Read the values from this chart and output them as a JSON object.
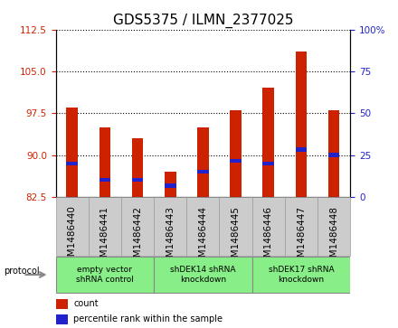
{
  "title": "GDS5375 / ILMN_2377025",
  "samples": [
    "GSM1486440",
    "GSM1486441",
    "GSM1486442",
    "GSM1486443",
    "GSM1486444",
    "GSM1486445",
    "GSM1486446",
    "GSM1486447",
    "GSM1486448"
  ],
  "red_values": [
    98.5,
    95.0,
    93.0,
    87.0,
    95.0,
    98.0,
    102.0,
    108.5,
    98.0
  ],
  "blue_values": [
    88.5,
    85.5,
    85.5,
    84.5,
    87.0,
    89.0,
    88.5,
    91.0,
    90.0
  ],
  "ymin": 82.5,
  "ymax": 112.5,
  "yticks": [
    82.5,
    90.0,
    97.5,
    105.0,
    112.5
  ],
  "y2ticks": [
    0,
    25,
    50,
    75,
    100
  ],
  "bar_width": 0.35,
  "bar_color": "#CC2200",
  "blue_color": "#2222CC",
  "protocol_groups": [
    {
      "label": "empty vector\nshRNA control",
      "start": 0,
      "end": 3,
      "color": "#88EE88"
    },
    {
      "label": "shDEK14 shRNA\nknockdown",
      "start": 3,
      "end": 6,
      "color": "#88EE88"
    },
    {
      "label": "shDEK17 shRNA\nknockdown",
      "start": 6,
      "end": 9,
      "color": "#88EE88"
    }
  ],
  "protocol_label": "protocol",
  "legend_count": "count",
  "legend_pct": "percentile rank within the sample",
  "title_fontsize": 11,
  "tick_fontsize": 7.5,
  "bg_color": "#CCCCCC",
  "plot_bg": "#FFFFFF"
}
